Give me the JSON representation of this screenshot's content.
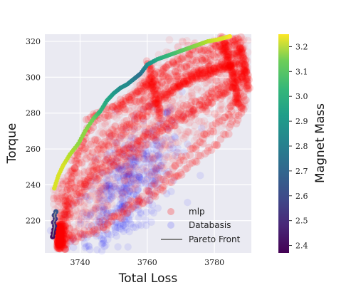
{
  "chart_data": {
    "type": "scatter",
    "xlabel": "Total Loss",
    "ylabel": "Torque",
    "colorbar_label": "Magnet Mass",
    "xlim": [
      3729.5,
      3791
    ],
    "ylim": [
      202,
      324
    ],
    "xticks": [
      3740,
      3760,
      3780
    ],
    "yticks": [
      220,
      240,
      260,
      280,
      300,
      320
    ],
    "colorbar_range": [
      2.37,
      3.25
    ],
    "colorbar_ticks": [
      2.4,
      2.5,
      2.6,
      2.7,
      2.8,
      2.9,
      3.0,
      3.1,
      3.2
    ],
    "colormap": "viridis",
    "grid": true,
    "background": "#eaeaf2",
    "legend_position": "lower-right",
    "legend": [
      {
        "label": "mlp",
        "color": "#ff0000",
        "marker": "circle"
      },
      {
        "label": "Databasis",
        "color": "#0000ff",
        "marker": "circle"
      },
      {
        "label": "Pareto Front",
        "color": "#808080",
        "marker": "line"
      }
    ],
    "pareto_front": {
      "x": [
        3732.3,
        3733.5,
        3735,
        3737,
        3739.5,
        3741.5,
        3744,
        3746,
        3748,
        3750,
        3752,
        3754,
        3756,
        3758,
        3760,
        3763,
        3766,
        3769,
        3772,
        3775,
        3778,
        3781,
        3783,
        3785
      ],
      "y": [
        238,
        245,
        251,
        257,
        263,
        270,
        277,
        281,
        287,
        291,
        294,
        296,
        299,
        302,
        307,
        310,
        312,
        314,
        316,
        318,
        320,
        321,
        322,
        323
      ],
      "mass": [
        3.2,
        3.2,
        3.2,
        3.15,
        3.1,
        3.1,
        3.05,
        2.95,
        2.9,
        2.85,
        2.8,
        2.8,
        2.75,
        2.7,
        2.8,
        2.9,
        2.95,
        3.0,
        3.05,
        3.1,
        3.15,
        3.2,
        3.2,
        3.25
      ]
    },
    "pareto_low_cluster": {
      "x": [
        3731.8,
        3732.0,
        3732.2,
        3732.4,
        3732.1,
        3732.6,
        3732.3,
        3732.8
      ],
      "y": [
        211,
        213,
        215,
        217,
        219,
        221,
        223,
        225
      ],
      "mass": [
        2.4,
        2.4,
        2.42,
        2.45,
        2.48,
        2.5,
        2.55,
        2.6
      ]
    },
    "mlp_curves": [
      {
        "x": [
          3733,
          3741,
          3752,
          3763,
          3773,
          3783,
          3789
        ],
        "y": [
          210,
          238,
          254,
          268,
          279,
          290,
          302
        ]
      },
      {
        "x": [
          3733,
          3744,
          3756,
          3768,
          3778,
          3787,
          3789
        ],
        "y": [
          216,
          247,
          262,
          276,
          287,
          296,
          306
        ]
      },
      {
        "x": [
          3734,
          3747,
          3760,
          3771,
          3781,
          3788
        ],
        "y": [
          224,
          254,
          268,
          283,
          293,
          304
        ]
      },
      {
        "x": [
          3735,
          3748,
          3758,
          3767,
          3774,
          3781,
          3788
        ],
        "y": [
          230,
          261,
          276,
          292,
          300,
          304,
          308
        ]
      },
      {
        "x": [
          3736,
          3752,
          3762,
          3770,
          3778,
          3786
        ],
        "y": [
          246,
          270,
          285,
          296,
          303,
          306
        ]
      },
      {
        "x": [
          3737,
          3755,
          3765,
          3774,
          3783,
          3789
        ],
        "y": [
          255,
          277,
          290,
          302,
          309,
          317
        ]
      },
      {
        "x": [
          3733,
          3744,
          3753,
          3762,
          3770,
          3780,
          3789
        ],
        "y": [
          207,
          214,
          223,
          235,
          246,
          262,
          280
        ]
      },
      {
        "x": [
          3733,
          3748,
          3757,
          3766,
          3775,
          3784,
          3789
        ],
        "y": [
          205,
          220,
          232,
          246,
          262,
          280,
          297
        ]
      },
      {
        "x": [
          3742,
          3752,
          3762,
          3772,
          3781,
          3788
        ],
        "y": [
          276,
          286,
          298,
          306,
          313,
          320
        ]
      },
      {
        "x": [
          3758,
          3762,
          3768,
          3775,
          3783,
          3788
        ],
        "y": [
          294,
          301,
          309,
          314,
          318,
          322
        ]
      },
      {
        "x": [
          3750,
          3758,
          3766,
          3774,
          3782,
          3789
        ],
        "y": [
          283,
          292,
          298,
          302,
          306,
          309
        ]
      },
      {
        "x": [
          3745,
          3756,
          3766,
          3776,
          3786
        ],
        "y": [
          276,
          286,
          292,
          300,
          308
        ]
      },
      {
        "x": [
          3734,
          3735,
          3736,
          3738,
          3741,
          3745
        ],
        "y": [
          206,
          218,
          232,
          248,
          266,
          280
        ]
      },
      {
        "x": [
          3760,
          3761,
          3762,
          3763,
          3764
        ],
        "y": [
          308,
          300,
          292,
          284,
          276
        ]
      },
      {
        "x": [
          3782,
          3783,
          3784,
          3785,
          3786,
          3787,
          3788
        ],
        "y": [
          322,
          316,
          310,
          304,
          296,
          288,
          282
        ]
      },
      {
        "x": [
          3787,
          3788,
          3789,
          3789.5,
          3790
        ],
        "y": [
          318,
          313,
          307,
          300,
          292
        ]
      }
    ],
    "databasis_cloud": {
      "center": [
        3754,
        238
      ],
      "spread_x": 8,
      "spread_y": 20
    }
  }
}
